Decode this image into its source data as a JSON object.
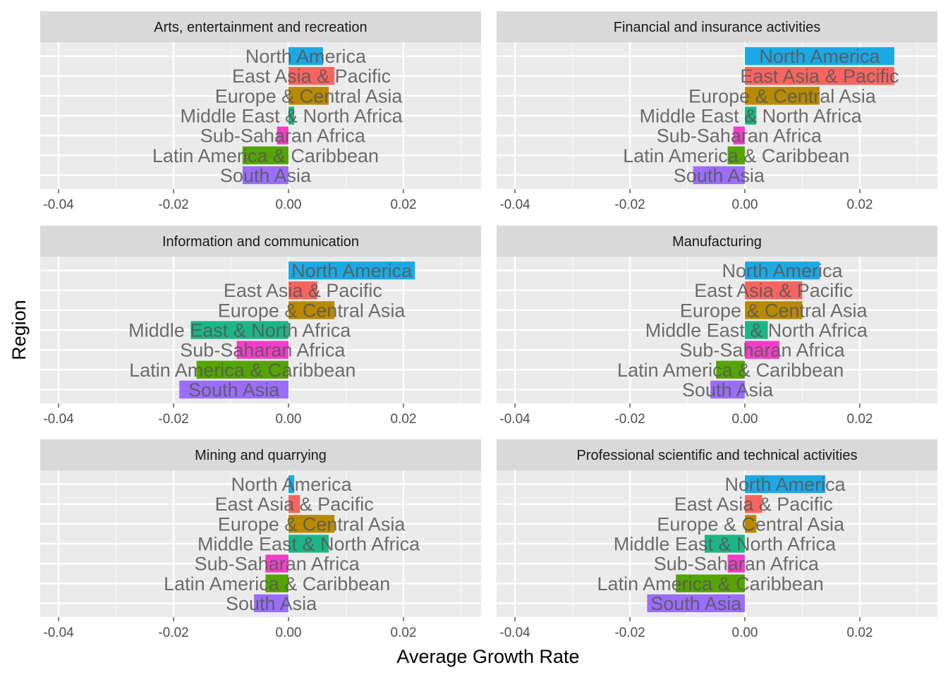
{
  "chart_data": {
    "type": "bar",
    "orientation": "horizontal",
    "xlabel": "Average Growth Rate",
    "ylabel": "Region",
    "xlim": [
      -0.0432,
      0.0335
    ],
    "x_ticks": [
      -0.04,
      -0.02,
      0.0,
      0.02
    ],
    "x_tick_labels": [
      "-0.04",
      "-0.02",
      "0.00",
      "0.02"
    ],
    "grid": true,
    "legend": "none",
    "facet_layout": {
      "rows": 3,
      "cols": 2
    },
    "categories": [
      "North America",
      "East Asia & Pacific",
      "Europe & Central Asia",
      "Middle East & North Africa",
      "Sub-Saharan Africa",
      "Latin America & Caribbean",
      "South Asia"
    ],
    "colors": {
      "North America": "#1ba9e6",
      "East Asia & Pacific": "#f8645f",
      "Europe & Central Asia": "#b98a00",
      "Middle East & North Africa": "#1cb686",
      "Sub-Saharan Africa": "#f23ec8",
      "Latin America & Caribbean": "#54a500",
      "South Asia": "#9a6dfa"
    },
    "panels": [
      {
        "title": "Arts, entertainment and recreation",
        "values": [
          0.006,
          0.008,
          0.007,
          0.001,
          -0.002,
          -0.008,
          -0.008
        ]
      },
      {
        "title": "Financial and insurance activities",
        "values": [
          0.026,
          0.026,
          0.013,
          0.002,
          -0.002,
          -0.003,
          -0.009
        ]
      },
      {
        "title": "Information and communication",
        "values": [
          0.022,
          0.005,
          0.008,
          -0.017,
          -0.009,
          -0.016,
          -0.019
        ]
      },
      {
        "title": "Manufacturing",
        "values": [
          0.013,
          0.01,
          0.01,
          0.004,
          0.006,
          -0.005,
          -0.006
        ]
      },
      {
        "title": "Mining and quarrying",
        "values": [
          0.001,
          0.002,
          0.008,
          0.007,
          -0.004,
          -0.004,
          -0.006
        ]
      },
      {
        "title": "Professional scientific and technical activities",
        "values": [
          0.014,
          0.003,
          0.002,
          -0.007,
          -0.003,
          -0.012,
          -0.017
        ]
      }
    ]
  }
}
